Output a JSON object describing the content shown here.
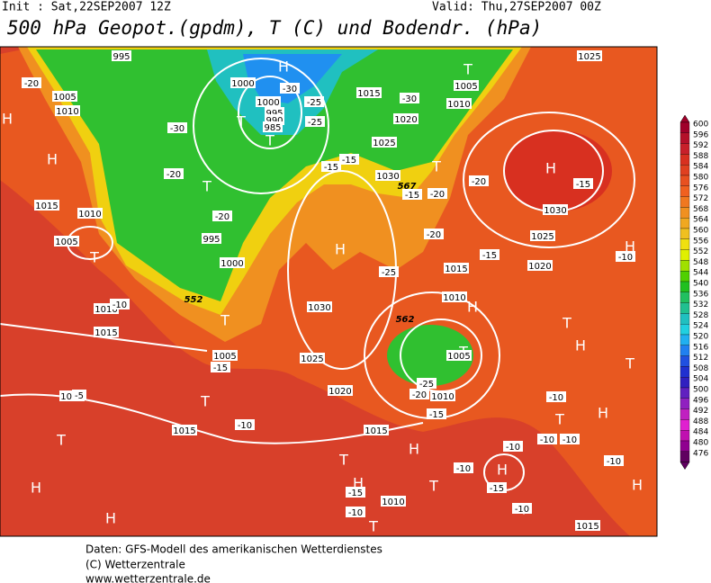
{
  "header": {
    "init": "Init : Sat,22SEP2007 12Z",
    "valid": "Valid: Thu,27SEP2007 00Z",
    "title": "500 hPa Geopot.(gpdm), T (C) und Bodendr. (hPa)"
  },
  "map": {
    "pressure_centers": [
      "H",
      "H",
      "T",
      "T",
      "T",
      "T",
      "H",
      "T",
      "H",
      "H",
      "T",
      "T",
      "T",
      "H",
      "T",
      "T",
      "T",
      "H",
      "T",
      "H",
      "T",
      "H",
      "H",
      "H",
      "T",
      "T",
      "H",
      "H",
      "T",
      "H",
      "T",
      "H"
    ],
    "isobar_labels": [
      "1005",
      "1010",
      "995",
      "1000",
      "1000",
      "995",
      "990",
      "985",
      "1015",
      "1020",
      "1025",
      "1030",
      "1025",
      "1005",
      "1010",
      "1030",
      "1025",
      "1020",
      "1015",
      "1010",
      "1005",
      "1010",
      "1015",
      "1010",
      "1005",
      "995",
      "1000",
      "1010",
      "1015",
      "1030",
      "1025",
      "1020",
      "1005",
      "1020",
      "1015",
      "1015",
      "1010",
      "1015"
    ],
    "temperature_labels": [
      "-20",
      "-30",
      "-20",
      "-20",
      "-30",
      "-25",
      "-25",
      "-30",
      "-15",
      "-15",
      "-15",
      "-20",
      "-20",
      "-15",
      "-20",
      "-15",
      "-10",
      "-25",
      "-10",
      "-5",
      "-15",
      "-10",
      "-20",
      "-25",
      "-15",
      "-10",
      "-10",
      "-10",
      "-10",
      "-10",
      "-10",
      "-15",
      "-10",
      "-10",
      "-15"
    ],
    "height_labels": [
      "552",
      "562",
      "567"
    ]
  },
  "colorbar": {
    "labels": [
      600,
      596,
      592,
      588,
      584,
      580,
      576,
      572,
      568,
      564,
      560,
      556,
      552,
      548,
      544,
      540,
      536,
      532,
      528,
      524,
      520,
      516,
      512,
      508,
      504,
      500,
      496,
      492,
      488,
      484,
      480,
      476
    ],
    "colors": [
      "#a0002a",
      "#b4102a",
      "#c8202a",
      "#d83020",
      "#e04020",
      "#e85020",
      "#f06020",
      "#f07820",
      "#f09020",
      "#f0a820",
      "#f0c020",
      "#f0e010",
      "#e0f000",
      "#a0e000",
      "#50d000",
      "#20c020",
      "#20c060",
      "#20c090",
      "#20c0c0",
      "#20d0e0",
      "#20b0f0",
      "#2080f0",
      "#2050e0",
      "#2030d0",
      "#3020c0",
      "#6020c0",
      "#9020c0",
      "#c020c0",
      "#e020d0",
      "#c010b0",
      "#900090",
      "#600060"
    ]
  },
  "footer": [
    "Daten: GFS-Modell des amerikanischen Wetterdienstes",
    "(C) Wetterzentrale",
    "www.wetterzentrale.de"
  ]
}
